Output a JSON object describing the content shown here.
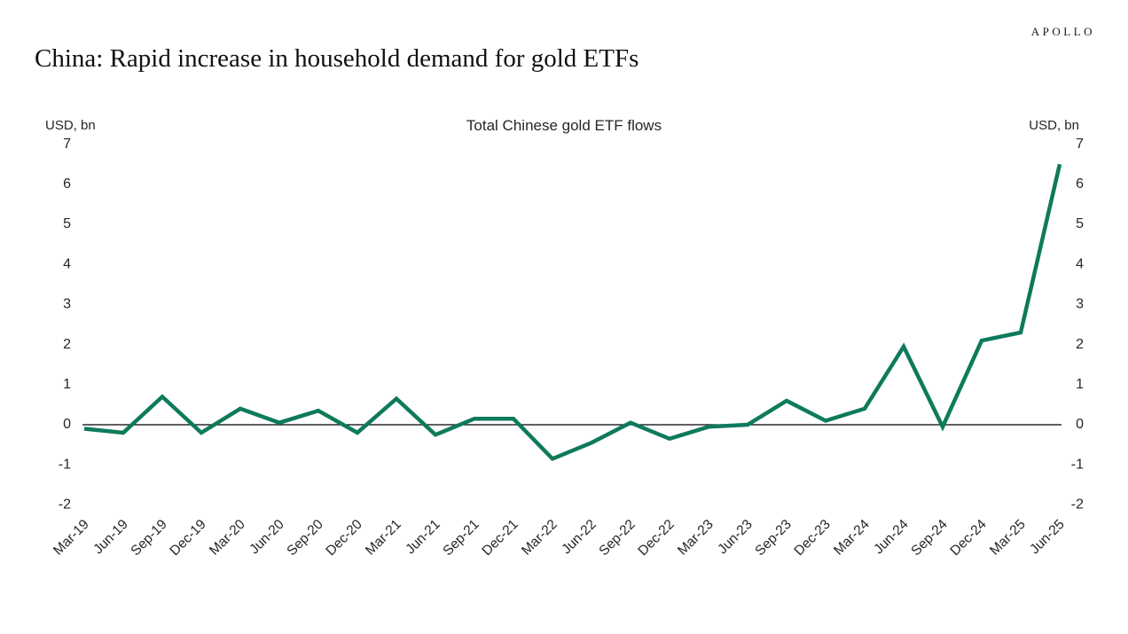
{
  "header": {
    "brand": "APOLLO",
    "title": "China: Rapid increase in household demand for gold ETFs"
  },
  "chart": {
    "title": "Total Chinese gold ETF flows",
    "left_unit": "USD, bn",
    "right_unit": "USD, bn"
  },
  "colors": {
    "line": "#0e7a5c",
    "zero_line": "#000000",
    "text": "#262626",
    "background": "#ffffff"
  },
  "chart_data": {
    "type": "line",
    "title": "Total Chinese gold ETF flows",
    "ylabel_left": "USD, bn",
    "ylabel_right": "USD, bn",
    "categories": [
      "Mar-19",
      "Jun-19",
      "Sep-19",
      "Dec-19",
      "Mar-20",
      "Jun-20",
      "Sep-20",
      "Dec-20",
      "Mar-21",
      "Jun-21",
      "Sep-21",
      "Dec-21",
      "Mar-22",
      "Jun-22",
      "Sep-22",
      "Dec-22",
      "Mar-23",
      "Jun-23",
      "Sep-23",
      "Dec-23",
      "Mar-24",
      "Jun-24",
      "Sep-24",
      "Dec-24",
      "Mar-25",
      "Jun-25"
    ],
    "series": [
      {
        "name": "Total Chinese gold ETF flows",
        "color": "#0e7a5c",
        "values": [
          -0.1,
          -0.2,
          0.7,
          -0.2,
          0.4,
          0.05,
          0.35,
          -0.2,
          0.65,
          -0.25,
          0.15,
          0.15,
          -0.85,
          -0.45,
          0.05,
          -0.35,
          -0.05,
          0.0,
          0.6,
          0.1,
          0.4,
          1.95,
          -0.05,
          2.1,
          2.3,
          6.5
        ]
      }
    ],
    "ylim": [
      -2,
      7
    ],
    "yticks": [
      7,
      6,
      5,
      4,
      3,
      2,
      1,
      0,
      -1,
      -2
    ],
    "dual_y_axis": true,
    "grid": false,
    "zero_line": true,
    "legend": "none",
    "x_label_rotation": -45
  }
}
